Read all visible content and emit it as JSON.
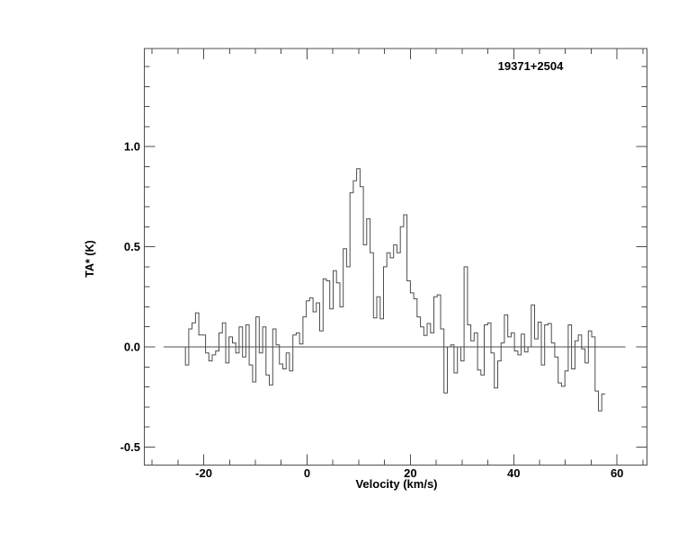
{
  "figure": {
    "background": "#ffffff",
    "line_color": "#4d4d4d",
    "text_color": "#000000"
  },
  "chart_data": {
    "type": "line",
    "style": "step-histogram",
    "title": "19371+2504",
    "xlabel": "Velocity (km/s)",
    "ylabel": "TA* (K)",
    "xlim": [
      -31.5,
      65.8
    ],
    "ylim": [
      -0.59,
      1.49
    ],
    "x_major_ticks": [
      -20,
      0,
      20,
      40,
      60
    ],
    "x_tick_labels": [
      "-20",
      "0",
      "20",
      "40",
      "60"
    ],
    "x_minor_step": 5,
    "y_major_ticks": [
      -0.5,
      0.0,
      0.5,
      1.0
    ],
    "y_tick_labels": [
      "-0.5",
      "0.0",
      "0.5",
      "1.0"
    ],
    "y_minor_step": 0.1,
    "grid": false,
    "legend": null,
    "baseline": {
      "v_start": -27.8,
      "v_end": 61.6,
      "level": 0.0
    },
    "velocity_start": -23.55,
    "channel_width": 0.65,
    "intensities": [
      -0.09,
      0.09,
      0.12,
      0.17,
      0.06,
      0.06,
      -0.03,
      -0.07,
      -0.04,
      -0.02,
      0.07,
      0.12,
      -0.08,
      0.05,
      0.02,
      -0.03,
      0.1,
      -0.05,
      0.11,
      -0.09,
      -0.175,
      0.15,
      -0.03,
      0.1,
      -0.14,
      -0.19,
      0.09,
      0.01,
      -0.085,
      -0.11,
      -0.03,
      -0.12,
      0.06,
      0.07,
      0.015,
      0.15,
      0.23,
      0.245,
      0.175,
      0.22,
      0.08,
      0.34,
      0.33,
      0.19,
      0.38,
      0.32,
      0.2,
      0.49,
      0.4,
      0.77,
      0.83,
      0.89,
      0.8,
      0.51,
      0.64,
      0.47,
      0.145,
      0.25,
      0.14,
      0.4,
      0.47,
      0.445,
      0.51,
      0.47,
      0.6,
      0.66,
      0.33,
      0.27,
      0.24,
      0.15,
      0.1,
      0.057,
      0.117,
      0.07,
      0.25,
      0.26,
      0.09,
      -0.23,
      0.0,
      0.01,
      -0.13,
      0.0,
      -0.07,
      0.4,
      0.11,
      0.03,
      0.07,
      -0.115,
      -0.14,
      0.11,
      0.12,
      -0.03,
      -0.205,
      -0.07,
      0.02,
      0.16,
      0.05,
      0.07,
      -0.02,
      -0.04,
      0.064,
      -0.025,
      0.0,
      0.21,
      0.04,
      0.124,
      -0.09,
      0.11,
      0.117,
      0.02,
      -0.05,
      -0.18,
      -0.197,
      -0.12,
      0.11,
      -0.11,
      0.03,
      0.06,
      -0.01,
      -0.08,
      0.08,
      0.05,
      -0.22,
      -0.32,
      -0.235
    ]
  }
}
